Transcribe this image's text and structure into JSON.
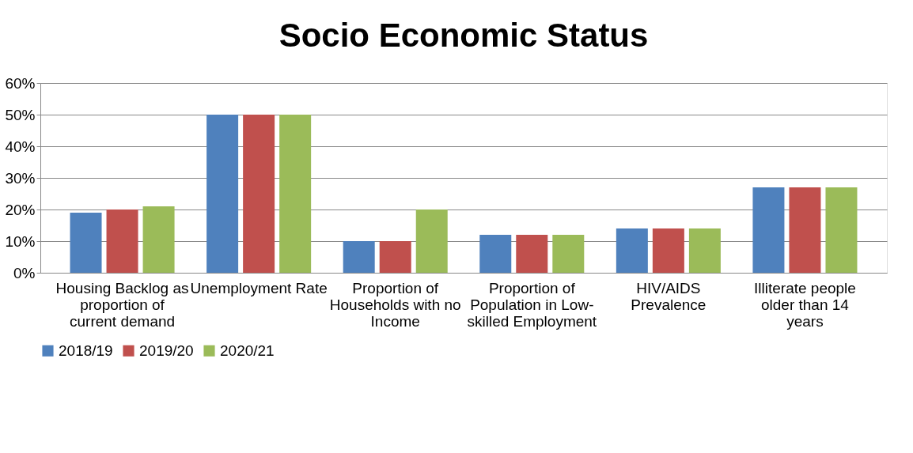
{
  "chart_data": {
    "type": "bar",
    "title": "Socio Economic Status",
    "categories": [
      "Housing Backlog as proportion of current demand",
      "Unemployment Rate",
      "Proportion of Households with no Income",
      "Proportion of Population in Low-skilled Employment",
      "HIV/AIDS Prevalence",
      "Illiterate people older than 14 years"
    ],
    "series": [
      {
        "name": "2018/19",
        "color": "#4f81bd",
        "values": [
          19,
          50,
          10,
          12,
          14,
          27
        ]
      },
      {
        "name": "2019/20",
        "color": "#c0504d",
        "values": [
          20,
          50,
          10,
          12,
          14,
          27
        ]
      },
      {
        "name": "2020/21",
        "color": "#9bbb59",
        "values": [
          21,
          50,
          20,
          12,
          14,
          27
        ]
      }
    ],
    "ylim": [
      0,
      60
    ],
    "yticks": [
      {
        "value": 0,
        "label": "0%"
      },
      {
        "value": 10,
        "label": "10%"
      },
      {
        "value": 20,
        "label": "20%"
      },
      {
        "value": 30,
        "label": "30%"
      },
      {
        "value": 40,
        "label": "40%"
      },
      {
        "value": 50,
        "label": "50%"
      },
      {
        "value": 60,
        "label": "60%"
      }
    ],
    "grid": "y",
    "legend": "bottom"
  }
}
